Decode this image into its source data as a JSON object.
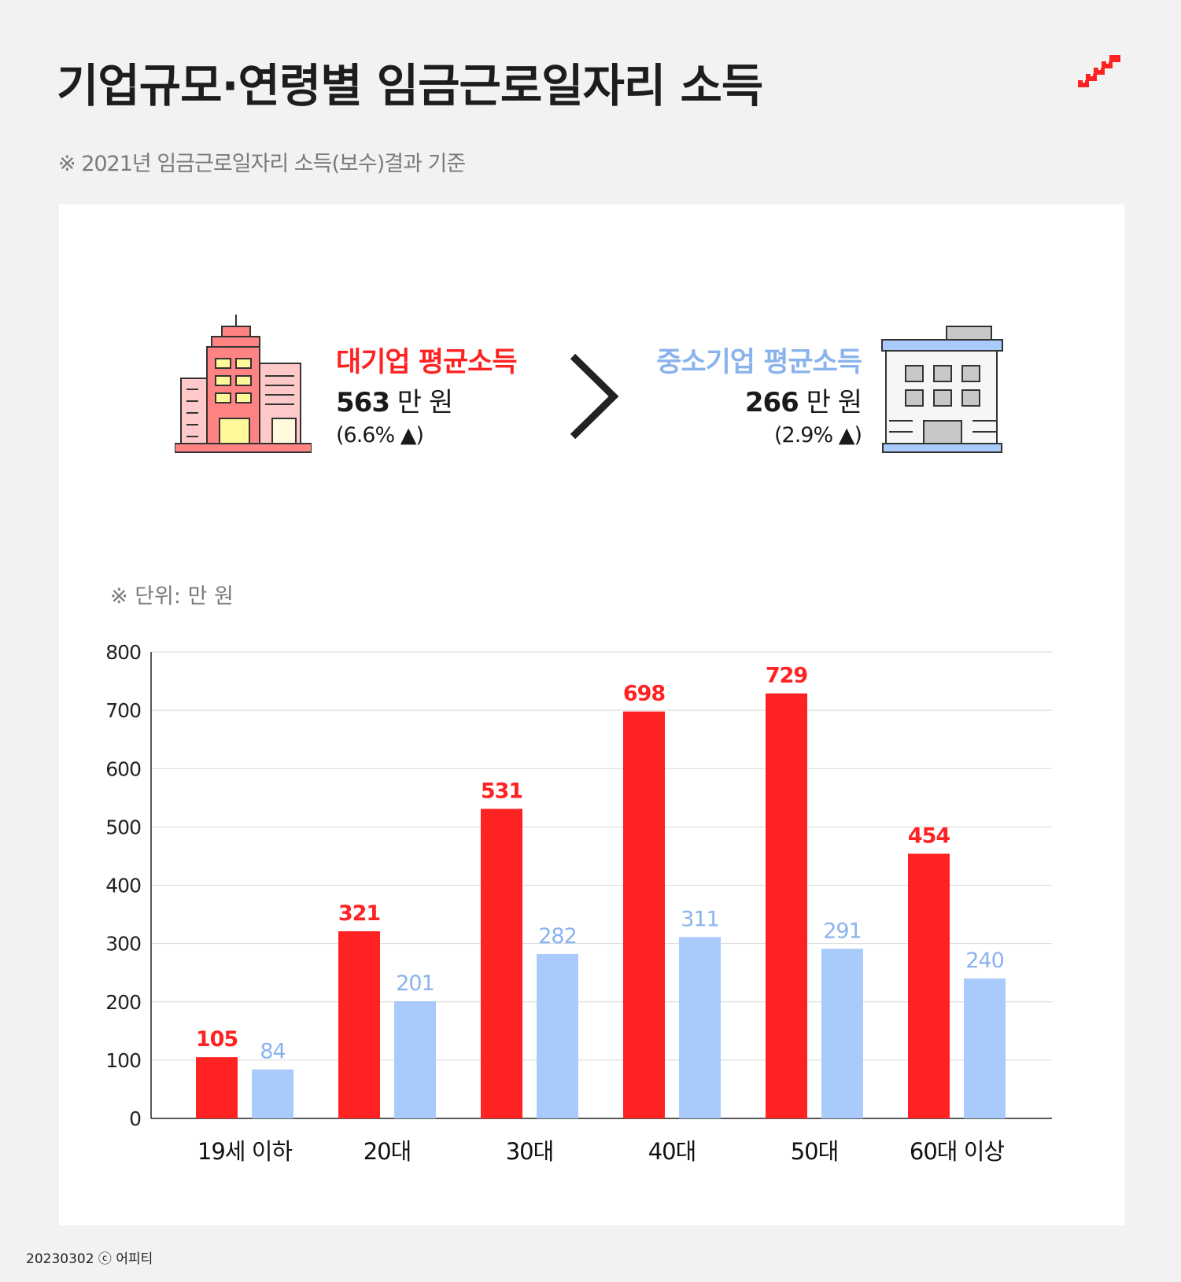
{
  "header": {
    "title": "기업규모·연령별 임금근로일자리 소득",
    "subtitle": "※ 2021년 임금근로일자리 소득(보수)결과 기준",
    "logo_icon": "stairs-logo-icon"
  },
  "summary": {
    "large": {
      "label": "대기업 평균소득",
      "value": "563",
      "unit": "만 원",
      "change": "(6.6% ▲)",
      "icon": "large-company-building-icon",
      "color": "#ff2222"
    },
    "comparison_icon": "greater-than-chevron-icon",
    "small": {
      "label": "중소기업 평균소득",
      "value": "266",
      "unit": "만 원",
      "change": "(2.9% ▲)",
      "icon": "small-company-building-icon",
      "color": "#8ab3ee"
    }
  },
  "unit_note": "※ 단위: 만 원",
  "chart_data": {
    "type": "bar",
    "categories": [
      "19세 이하",
      "20대",
      "30대",
      "40대",
      "50대",
      "60대 이상"
    ],
    "series": [
      {
        "values": [
          105,
          321,
          531,
          698,
          729,
          454
        ],
        "color": "#ff2222",
        "label_color": "#ff2222"
      },
      {
        "values": [
          84,
          201,
          282,
          311,
          291,
          240
        ],
        "color": "#a8cbfb",
        "label_color": "#8ab3ee"
      }
    ],
    "ylim": [
      0,
      800
    ],
    "yticks": [
      0,
      100,
      200,
      300,
      400,
      500,
      600,
      700,
      800
    ],
    "grid": true,
    "data_labels": true
  },
  "footer": "20230302 ⓒ 어피티"
}
